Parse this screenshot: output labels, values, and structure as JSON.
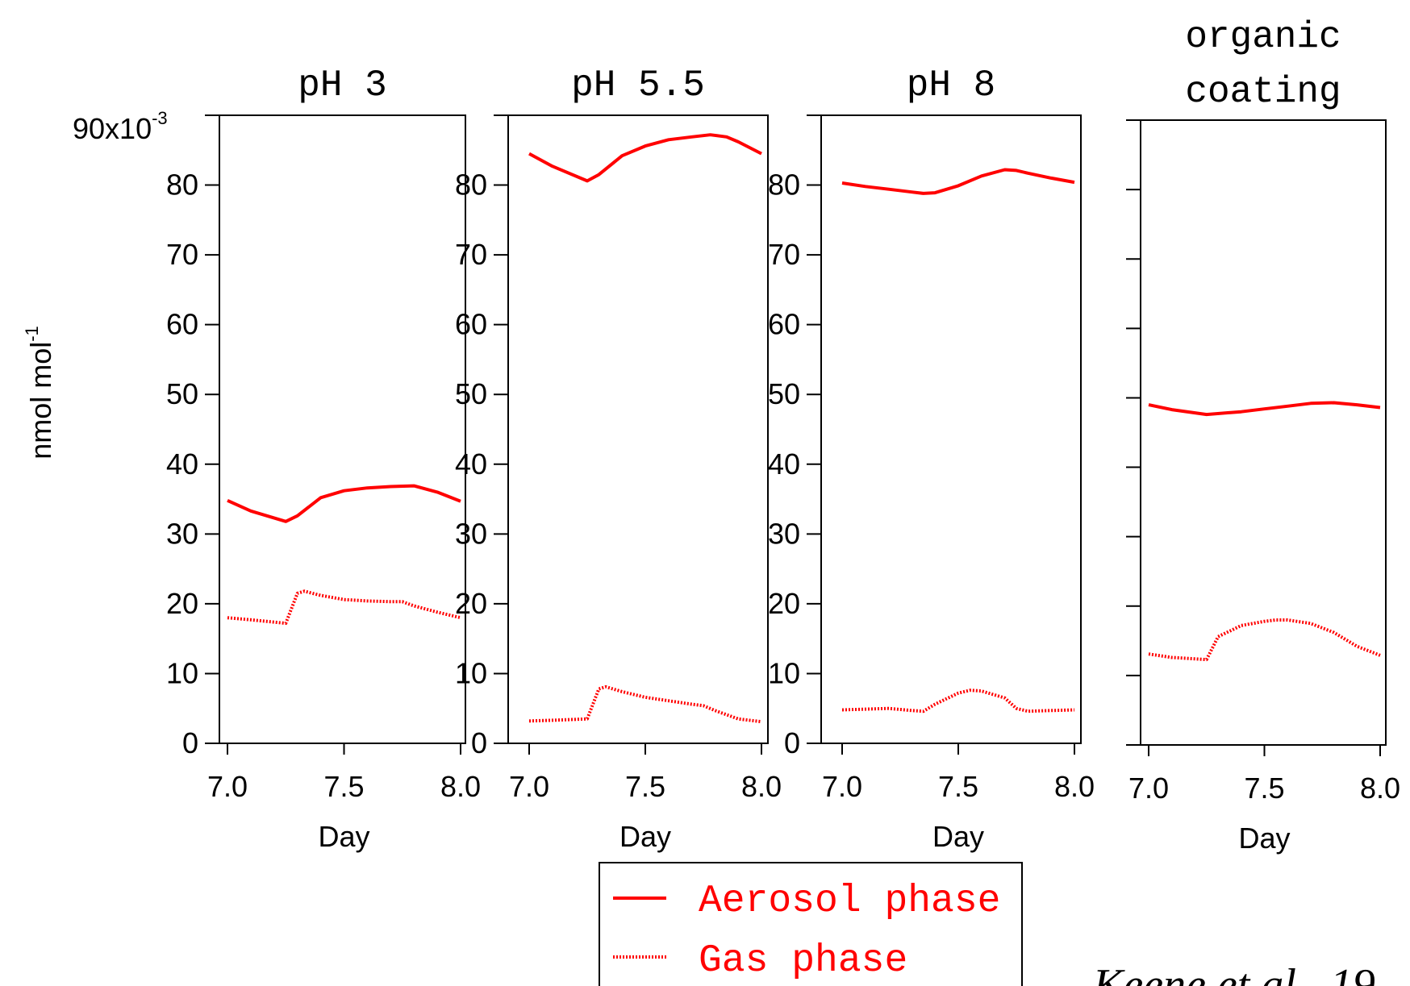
{
  "ylabel": "nmol mol",
  "ylabel_superscript": "-1",
  "ytop_label": "90x10",
  "ytop_label_superscript": "-3",
  "citation": "Keene et al., 19",
  "colors": {
    "series": "#ff0000",
    "axis": "#000000"
  },
  "legend": {
    "items": [
      {
        "label": "Aerosol phase",
        "style": "solid"
      },
      {
        "label": "Gas phase",
        "style": "dotted"
      }
    ]
  },
  "chart_data": [
    {
      "type": "line",
      "title": "pH 3",
      "xlabel": "Day",
      "xlim": [
        7.0,
        8.0
      ],
      "ylim": [
        0,
        90
      ],
      "x_ticks": [
        "7.0",
        "7.5",
        "8.0"
      ],
      "y_ticks": [
        "0",
        "10",
        "20",
        "30",
        "40",
        "50",
        "60",
        "70",
        "80"
      ],
      "series": [
        {
          "name": "Aerosol phase",
          "style": "solid",
          "x": [
            7.0,
            7.1,
            7.25,
            7.3,
            7.4,
            7.5,
            7.6,
            7.7,
            7.8,
            7.9,
            8.0
          ],
          "y": [
            34.8,
            33.3,
            31.8,
            32.6,
            35.2,
            36.2,
            36.6,
            36.8,
            36.9,
            36.0,
            34.7
          ]
        },
        {
          "name": "Gas phase",
          "style": "dotted",
          "x": [
            7.0,
            7.1,
            7.25,
            7.3,
            7.33,
            7.4,
            7.5,
            7.6,
            7.7,
            7.75,
            7.8,
            7.9,
            8.0
          ],
          "y": [
            18.0,
            17.7,
            17.2,
            21.5,
            21.8,
            21.2,
            20.6,
            20.4,
            20.3,
            20.3,
            19.7,
            18.8,
            18.0
          ]
        }
      ]
    },
    {
      "type": "line",
      "title": "pH 5.5",
      "xlabel": "Day",
      "xlim": [
        7.0,
        8.0
      ],
      "ylim": [
        0,
        90
      ],
      "x_ticks": [
        "7.0",
        "7.5",
        "8.0"
      ],
      "y_ticks": [
        "0",
        "10",
        "20",
        "30",
        "40",
        "50",
        "60",
        "70",
        "80"
      ],
      "series": [
        {
          "name": "Aerosol phase",
          "style": "solid",
          "x": [
            7.0,
            7.1,
            7.25,
            7.3,
            7.4,
            7.5,
            7.6,
            7.7,
            7.78,
            7.85,
            7.9,
            8.0
          ],
          "y": [
            84.5,
            82.7,
            80.6,
            81.5,
            84.2,
            85.6,
            86.5,
            86.9,
            87.2,
            86.9,
            86.2,
            84.5
          ]
        },
        {
          "name": "Gas phase",
          "style": "dotted",
          "x": [
            7.0,
            7.1,
            7.25,
            7.3,
            7.33,
            7.4,
            7.5,
            7.6,
            7.7,
            7.75,
            7.8,
            7.9,
            8.0
          ],
          "y": [
            3.2,
            3.3,
            3.5,
            7.8,
            8.1,
            7.4,
            6.6,
            6.1,
            5.6,
            5.4,
            4.7,
            3.5,
            3.1
          ]
        }
      ]
    },
    {
      "type": "line",
      "title": "pH 8",
      "xlabel": "Day",
      "xlim": [
        7.0,
        8.0
      ],
      "ylim": [
        0,
        90
      ],
      "x_ticks": [
        "7.0",
        "7.5",
        "8.0"
      ],
      "y_ticks": [
        "0",
        "10",
        "20",
        "30",
        "40",
        "50",
        "60",
        "70",
        "80"
      ],
      "series": [
        {
          "name": "Aerosol phase",
          "style": "solid",
          "x": [
            7.0,
            7.1,
            7.2,
            7.3,
            7.35,
            7.4,
            7.5,
            7.6,
            7.7,
            7.75,
            7.8,
            7.9,
            8.0
          ],
          "y": [
            80.3,
            79.8,
            79.4,
            79.0,
            78.8,
            78.9,
            79.9,
            81.3,
            82.2,
            82.1,
            81.7,
            81.0,
            80.4
          ]
        },
        {
          "name": "Gas phase",
          "style": "dotted",
          "x": [
            7.0,
            7.1,
            7.2,
            7.3,
            7.35,
            7.4,
            7.5,
            7.55,
            7.6,
            7.7,
            7.75,
            7.8,
            7.9,
            8.0
          ],
          "y": [
            4.8,
            4.9,
            5.0,
            4.7,
            4.6,
            5.6,
            7.2,
            7.6,
            7.5,
            6.5,
            5.0,
            4.6,
            4.7,
            4.8
          ]
        }
      ]
    },
    {
      "type": "line",
      "title": "organic coating",
      "xlabel": "Day",
      "xlim": [
        7.0,
        8.0
      ],
      "ylim": [
        0,
        90
      ],
      "x_ticks": [
        "7.0",
        "7.5",
        "8.0"
      ],
      "y_ticks": [],
      "series": [
        {
          "name": "Aerosol phase",
          "style": "solid",
          "x": [
            7.0,
            7.1,
            7.25,
            7.4,
            7.5,
            7.6,
            7.7,
            7.8,
            7.9,
            8.0
          ],
          "y": [
            49.0,
            48.3,
            47.6,
            48.0,
            48.4,
            48.8,
            49.2,
            49.3,
            49.0,
            48.6
          ]
        },
        {
          "name": "Gas phase",
          "style": "dotted",
          "x": [
            7.0,
            7.1,
            7.25,
            7.3,
            7.4,
            7.5,
            7.55,
            7.6,
            7.7,
            7.8,
            7.9,
            8.0
          ],
          "y": [
            13.1,
            12.6,
            12.3,
            15.6,
            17.2,
            17.8,
            18.0,
            18.0,
            17.5,
            16.2,
            14.2,
            12.9
          ]
        }
      ]
    }
  ]
}
